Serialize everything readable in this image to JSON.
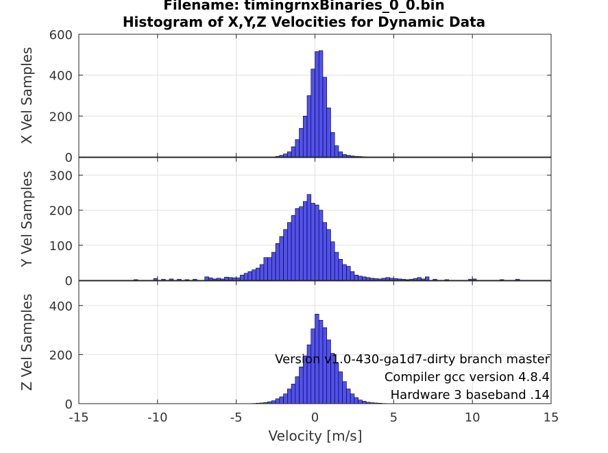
{
  "title_line1": "Filename: timingrnxBinaries_0_0.bin",
  "title_line2": "Histogram of X,Y,Z Velocities for Dynamic Data",
  "annotation": {
    "line1": "Version v1.0-430-ga1d7-dirty branch master",
    "line2": "Compiler gcc version 4.8.4",
    "line3": "Hardware 3 baseband .14"
  },
  "colors": {
    "bar_fill": "#5050f0",
    "bar_edge": "#000000",
    "grid": "#e0e0e0",
    "axis": "#262626"
  },
  "chart_data": [
    {
      "type": "bar",
      "ylabel": "X Vel Samples",
      "xlim": [
        -15,
        15
      ],
      "ylim": [
        0,
        600
      ],
      "yticks": [
        0,
        200,
        400,
        600
      ],
      "grid": true,
      "bin_width": 0.25,
      "x": [
        -2.375,
        -2.125,
        -1.875,
        -1.625,
        -1.375,
        -1.125,
        -0.875,
        -0.625,
        -0.375,
        -0.125,
        0.125,
        0.375,
        0.625,
        0.875,
        1.125,
        1.375,
        1.625,
        1.875,
        2.125,
        2.375,
        2.625,
        2.875,
        3.125
      ],
      "values": [
        3,
        8,
        15,
        25,
        50,
        85,
        140,
        200,
        300,
        430,
        515,
        520,
        390,
        240,
        120,
        55,
        25,
        12,
        8,
        5,
        3,
        2,
        1
      ]
    },
    {
      "type": "bar",
      "ylabel": "Y Vel Samples",
      "xlim": [
        -15,
        15
      ],
      "ylim": [
        0,
        350
      ],
      "yticks": [
        0,
        100,
        200,
        300
      ],
      "grid": true,
      "bin_width": 0.25,
      "x": [
        -11.375,
        -10.125,
        -9.625,
        -9.125,
        -8.625,
        -8.125,
        -7.625,
        -6.875,
        -6.625,
        -6.375,
        -6.125,
        -5.875,
        -5.625,
        -5.375,
        -5.125,
        -4.875,
        -4.625,
        -4.375,
        -4.125,
        -3.875,
        -3.625,
        -3.375,
        -3.125,
        -2.875,
        -2.625,
        -2.375,
        -2.125,
        -1.875,
        -1.625,
        -1.375,
        -1.125,
        -0.875,
        -0.625,
        -0.375,
        -0.125,
        0.125,
        0.375,
        0.625,
        0.875,
        1.125,
        1.375,
        1.625,
        1.875,
        2.125,
        2.375,
        2.625,
        2.875,
        3.125,
        3.375,
        3.625,
        3.875,
        4.125,
        4.375,
        4.625,
        4.875,
        5.125,
        5.375,
        5.625,
        5.875,
        6.125,
        6.375,
        6.625,
        6.875,
        7.125,
        7.625,
        8.375,
        9.875,
        10.125,
        11.875,
        12.875
      ],
      "values": [
        2,
        5,
        3,
        4,
        3,
        2,
        3,
        10,
        7,
        4,
        6,
        4,
        9,
        8,
        7,
        7,
        15,
        20,
        25,
        30,
        35,
        45,
        65,
        65,
        80,
        105,
        125,
        145,
        165,
        185,
        205,
        210,
        225,
        245,
        220,
        215,
        200,
        165,
        145,
        110,
        80,
        60,
        45,
        40,
        25,
        15,
        12,
        10,
        8,
        6,
        5,
        4,
        6,
        8,
        6,
        5,
        4,
        3,
        2,
        3,
        5,
        8,
        4,
        10,
        3,
        2,
        3,
        4,
        2,
        3
      ]
    },
    {
      "type": "bar",
      "ylabel": "Z Vel Samples",
      "xlabel": "Velocity [m/s]",
      "xlim": [
        -15,
        15
      ],
      "ylim": [
        0,
        500
      ],
      "yticks": [
        0,
        200,
        400
      ],
      "xticks": [
        -15,
        -10,
        -5,
        0,
        5,
        10,
        15
      ],
      "grid": true,
      "bin_width": 0.25,
      "x": [
        -3.875,
        -3.625,
        -3.375,
        -3.125,
        -2.875,
        -2.625,
        -2.375,
        -2.125,
        -1.875,
        -1.625,
        -1.375,
        -1.125,
        -0.875,
        -0.625,
        -0.375,
        -0.125,
        0.125,
        0.375,
        0.625,
        0.875,
        1.125,
        1.375,
        1.625,
        1.875,
        2.125,
        2.375,
        2.625,
        2.875,
        3.125,
        3.375,
        3.625,
        3.875,
        4.125,
        4.375
      ],
      "values": [
        1,
        2,
        3,
        5,
        8,
        12,
        20,
        28,
        40,
        60,
        80,
        110,
        150,
        195,
        240,
        305,
        365,
        340,
        310,
        260,
        205,
        165,
        130,
        90,
        60,
        40,
        25,
        15,
        10,
        6,
        4,
        3,
        2,
        1
      ]
    }
  ]
}
